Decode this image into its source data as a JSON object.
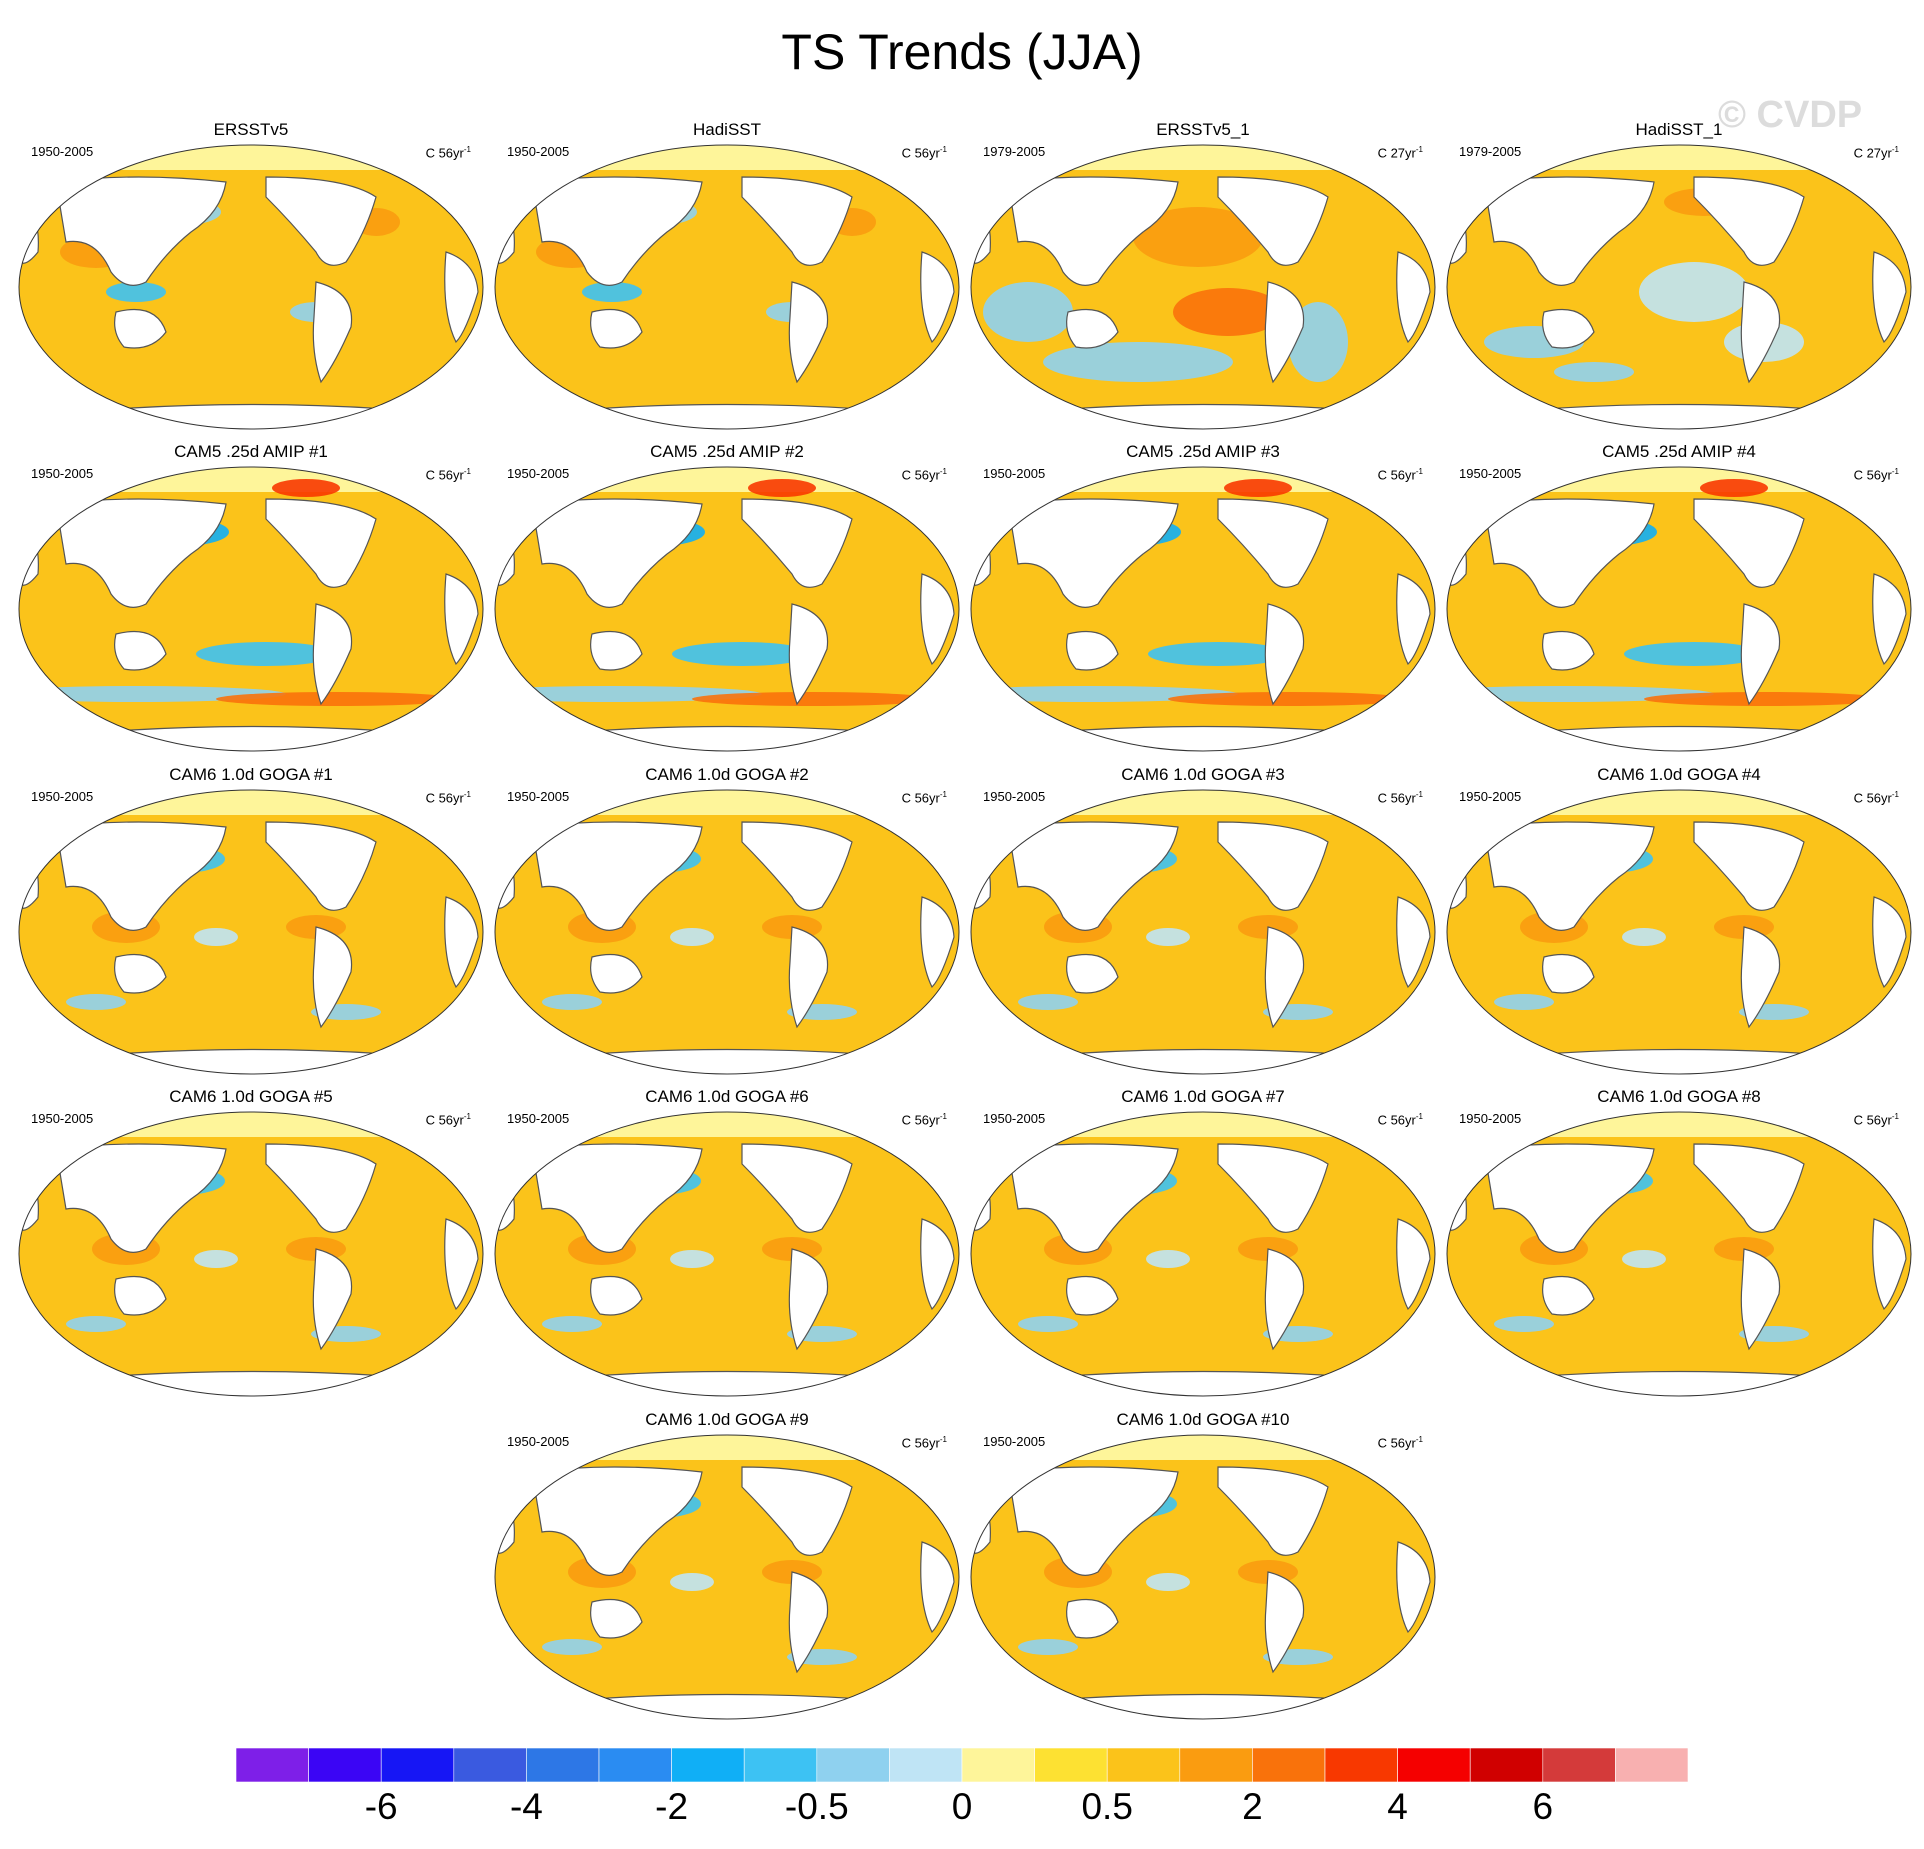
{
  "title": "TS Trends (JJA)",
  "watermark": "© CVDP",
  "colors": {
    "ocean": "#fbc31a",
    "land": "#ffffff",
    "coast": "#555555"
  },
  "chart_data": {
    "type": "heatmap",
    "title": "TS Trends (JJA)",
    "projection": "Robinson global maps, Pacific-centered",
    "colorbar": {
      "colors": [
        "#7e1fe8",
        "#3b05f5",
        "#1616f5",
        "#3a5ae0",
        "#2d77e6",
        "#2a8cf2",
        "#10aff6",
        "#3dc2f3",
        "#8fd1ef",
        "#bfe4f5",
        "#fef59a",
        "#fde132",
        "#fbc31a",
        "#fa9c10",
        "#f9720b",
        "#f83800",
        "#f50000",
        "#d00000",
        "#d43a3a",
        "#f8b0b0"
      ],
      "labels": [
        "-6",
        "-4",
        "-2",
        "-0.5",
        "0",
        "0.5",
        "2",
        "4",
        "6"
      ]
    },
    "panels": [
      {
        "title": "ERSSTv5",
        "period": "1950-2005",
        "units": "C 56yr",
        "units_sup": "-1"
      },
      {
        "title": "HadiSST",
        "period": "1950-2005",
        "units": "C 56yr",
        "units_sup": "-1"
      },
      {
        "title": "ERSSTv5_1",
        "period": "1979-2005",
        "units": "C 27yr",
        "units_sup": "-1"
      },
      {
        "title": "HadiSST_1",
        "period": "1979-2005",
        "units": "C 27yr",
        "units_sup": "-1"
      },
      {
        "title": "CAM5 .25d AMIP #1",
        "period": "1950-2005",
        "units": "C 56yr",
        "units_sup": "-1"
      },
      {
        "title": "CAM5 .25d AMIP #2",
        "period": "1950-2005",
        "units": "C 56yr",
        "units_sup": "-1"
      },
      {
        "title": "CAM5 .25d AMIP #3",
        "period": "1950-2005",
        "units": "C 56yr",
        "units_sup": "-1"
      },
      {
        "title": "CAM5 .25d AMIP #4",
        "period": "1950-2005",
        "units": "C 56yr",
        "units_sup": "-1"
      },
      {
        "title": "CAM6 1.0d GOGA #1",
        "period": "1950-2005",
        "units": "C 56yr",
        "units_sup": "-1"
      },
      {
        "title": "CAM6 1.0d GOGA #2",
        "period": "1950-2005",
        "units": "C 56yr",
        "units_sup": "-1"
      },
      {
        "title": "CAM6 1.0d GOGA #3",
        "period": "1950-2005",
        "units": "C 56yr",
        "units_sup": "-1"
      },
      {
        "title": "CAM6 1.0d GOGA #4",
        "period": "1950-2005",
        "units": "C 56yr",
        "units_sup": "-1"
      },
      {
        "title": "CAM6 1.0d GOGA #5",
        "period": "1950-2005",
        "units": "C 56yr",
        "units_sup": "-1"
      },
      {
        "title": "CAM6 1.0d GOGA #6",
        "period": "1950-2005",
        "units": "C 56yr",
        "units_sup": "-1"
      },
      {
        "title": "CAM6 1.0d GOGA #7",
        "period": "1950-2005",
        "units": "C 56yr",
        "units_sup": "-1"
      },
      {
        "title": "CAM6 1.0d GOGA #8",
        "period": "1950-2005",
        "units": "C 56yr",
        "units_sup": "-1"
      },
      {
        "title": "CAM6 1.0d GOGA #9",
        "period": "1950-2005",
        "units": "C 56yr",
        "units_sup": "-1"
      },
      {
        "title": "CAM6 1.0d GOGA #10",
        "period": "1950-2005",
        "units": "C 56yr",
        "units_sup": "-1"
      }
    ]
  }
}
